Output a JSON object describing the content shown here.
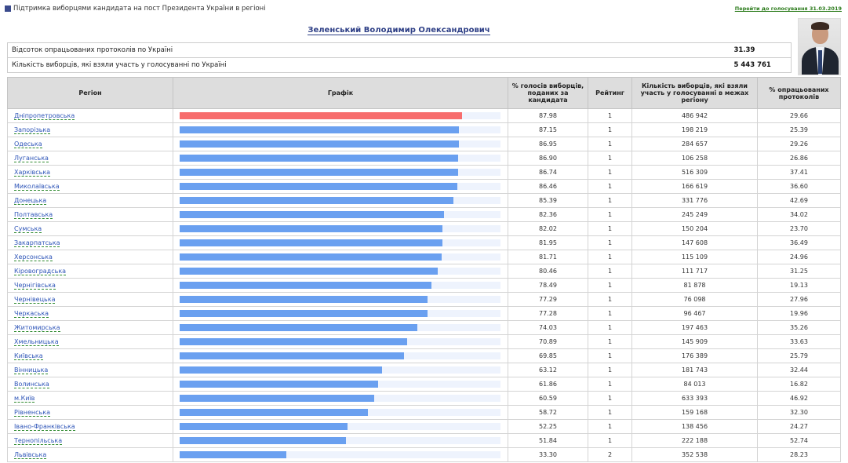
{
  "header": {
    "title": "Підтримка виборцями кандидата на пост Президента України в регіоні",
    "link": "Перейти до голосування 31.03.2019"
  },
  "candidate": "Зеленський Володимир Олександрович",
  "summary": [
    {
      "label": "Відсоток опрацьованих протоколів по Україні",
      "value": "31.39"
    },
    {
      "label": "Кількість виборців, які взяли участь у голосуванні по Україні",
      "value": "5 443 761"
    }
  ],
  "columns": {
    "region": "Регіон",
    "chart": "Графік",
    "percent": "% голосів виборців, поданих за кандидата",
    "rating": "Рейтинг",
    "voters": "Кількість виборців, які взяли участь у голосуванні в межах регіону",
    "processed": "% опрацьованих протоколів"
  },
  "colors": {
    "bar": "#6aa0f0",
    "bar_top": "#f76d6d",
    "track": "#eef3fd"
  },
  "rows": [
    {
      "region": "Дніпропетровська",
      "percent": "87.98",
      "rating": "1",
      "voters": "486 942",
      "processed": "29.66"
    },
    {
      "region": "Запорізька",
      "percent": "87.15",
      "rating": "1",
      "voters": "198 219",
      "processed": "25.39"
    },
    {
      "region": "Одеська",
      "percent": "86.95",
      "rating": "1",
      "voters": "284 657",
      "processed": "29.26"
    },
    {
      "region": "Луганська",
      "percent": "86.90",
      "rating": "1",
      "voters": "106 258",
      "processed": "26.86"
    },
    {
      "region": "Харківська",
      "percent": "86.74",
      "rating": "1",
      "voters": "516 309",
      "processed": "37.41"
    },
    {
      "region": "Миколаївська",
      "percent": "86.46",
      "rating": "1",
      "voters": "166 619",
      "processed": "36.60"
    },
    {
      "region": "Донецька",
      "percent": "85.39",
      "rating": "1",
      "voters": "331 776",
      "processed": "42.69"
    },
    {
      "region": "Полтавська",
      "percent": "82.36",
      "rating": "1",
      "voters": "245 249",
      "processed": "34.02"
    },
    {
      "region": "Сумська",
      "percent": "82.02",
      "rating": "1",
      "voters": "150 204",
      "processed": "23.70"
    },
    {
      "region": "Закарпатська",
      "percent": "81.95",
      "rating": "1",
      "voters": "147 608",
      "processed": "36.49"
    },
    {
      "region": "Херсонська",
      "percent": "81.71",
      "rating": "1",
      "voters": "115 109",
      "processed": "24.96"
    },
    {
      "region": "Кіровоградська",
      "percent": "80.46",
      "rating": "1",
      "voters": "111 717",
      "processed": "31.25"
    },
    {
      "region": "Чернігівська",
      "percent": "78.49",
      "rating": "1",
      "voters": "81 878",
      "processed": "19.13"
    },
    {
      "region": "Чернівецька",
      "percent": "77.29",
      "rating": "1",
      "voters": "76 098",
      "processed": "27.96"
    },
    {
      "region": "Черкаська",
      "percent": "77.28",
      "rating": "1",
      "voters": "96 467",
      "processed": "19.96"
    },
    {
      "region": "Житомирська",
      "percent": "74.03",
      "rating": "1",
      "voters": "197 463",
      "processed": "35.26"
    },
    {
      "region": "Хмельницька",
      "percent": "70.89",
      "rating": "1",
      "voters": "145 909",
      "processed": "33.63"
    },
    {
      "region": "Київська",
      "percent": "69.85",
      "rating": "1",
      "voters": "176 389",
      "processed": "25.79"
    },
    {
      "region": "Вінницька",
      "percent": "63.12",
      "rating": "1",
      "voters": "181 743",
      "processed": "32.44"
    },
    {
      "region": "Волинська",
      "percent": "61.86",
      "rating": "1",
      "voters": "84 013",
      "processed": "16.82"
    },
    {
      "region": "м.Київ",
      "percent": "60.59",
      "rating": "1",
      "voters": "633 393",
      "processed": "46.92"
    },
    {
      "region": "Рівненська",
      "percent": "58.72",
      "rating": "1",
      "voters": "159 168",
      "processed": "32.30"
    },
    {
      "region": "Івано-Франківська",
      "percent": "52.25",
      "rating": "1",
      "voters": "138 456",
      "processed": "24.27"
    },
    {
      "region": "Тернопільська",
      "percent": "51.84",
      "rating": "1",
      "voters": "222 188",
      "processed": "52.74"
    },
    {
      "region": "Львівська",
      "percent": "33.30",
      "rating": "2",
      "voters": "352 538",
      "processed": "28.23"
    }
  ]
}
